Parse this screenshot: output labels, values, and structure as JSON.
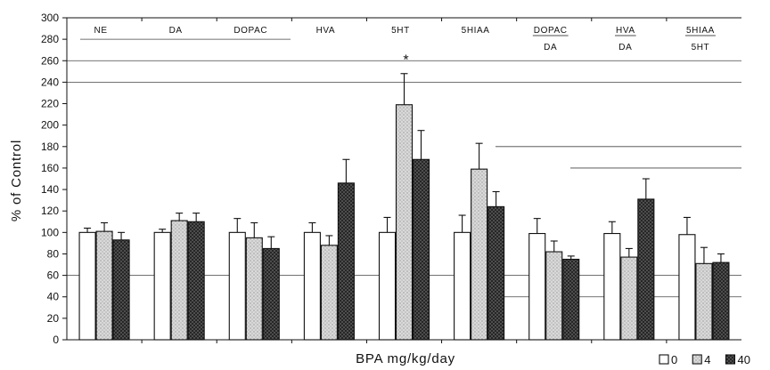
{
  "chart_data": {
    "type": "bar",
    "categories": [
      {
        "label": "NE"
      },
      {
        "label": "DA"
      },
      {
        "label": "DOPAC"
      },
      {
        "label": "HVA"
      },
      {
        "label": "5HT"
      },
      {
        "label": "5HIAA"
      },
      {
        "numerator": "DOPAC",
        "denominator": "DA"
      },
      {
        "numerator": "HVA",
        "denominator": "DA"
      },
      {
        "numerator": "5HIAA",
        "denominator": "5HT"
      }
    ],
    "series": [
      {
        "name": "0",
        "color": "#ffffff",
        "values": [
          100,
          100,
          100,
          100,
          100,
          100,
          99,
          99,
          98
        ],
        "errors": [
          4,
          3,
          13,
          9,
          14,
          16,
          14,
          11,
          16
        ]
      },
      {
        "name": "4",
        "color": "#d9d9d9",
        "values": [
          101,
          111,
          95,
          88,
          219,
          159,
          82,
          77,
          71
        ],
        "errors": [
          8,
          7,
          14,
          9,
          29,
          24,
          10,
          8,
          15
        ]
      },
      {
        "name": "40",
        "color": "#5a5a5a",
        "values": [
          93,
          110,
          85,
          146,
          168,
          124,
          75,
          131,
          72
        ],
        "errors": [
          7,
          8,
          11,
          22,
          27,
          14,
          3,
          19,
          8
        ]
      }
    ],
    "ylabel": "% of Control",
    "xlabel": "BPA mg/kg/day",
    "ylim": [
      0,
      300
    ],
    "yticks": [
      0,
      20,
      40,
      60,
      80,
      100,
      120,
      140,
      160,
      180,
      200,
      220,
      240,
      260,
      280,
      300
    ],
    "gridlines": [
      280,
      260,
      240,
      180,
      160,
      60,
      40
    ],
    "legend": {
      "placement": "bottom-right"
    },
    "annotations": [
      {
        "text": "*",
        "category": 4,
        "series": 1
      }
    ]
  }
}
